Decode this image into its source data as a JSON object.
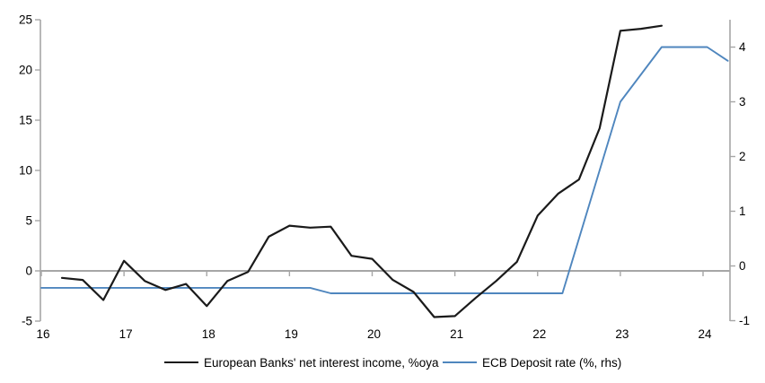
{
  "chart_data": {
    "type": "line",
    "x_axis": {
      "tick_labels": [
        "16",
        "17",
        "18",
        "19",
        "20",
        "21",
        "22",
        "23",
        "24"
      ],
      "ticks": [
        16,
        17,
        18,
        19,
        20,
        21,
        22,
        23,
        24
      ],
      "range": [
        16,
        24.33
      ],
      "grid": false
    },
    "left_axis": {
      "ticks": [
        25,
        20,
        15,
        10,
        5,
        0,
        -5
      ],
      "range": [
        -5,
        25
      ],
      "zero_line": true
    },
    "right_axis": {
      "ticks": [
        4,
        3,
        2,
        1,
        0,
        -1
      ],
      "range": [
        -1,
        4.6
      ]
    },
    "series": [
      {
        "name": "European Banks' net interest income, %oya",
        "axis": "left",
        "color": "#1a1a1a",
        "x": [
          16.25,
          16.5,
          16.75,
          17.0,
          17.25,
          17.5,
          17.75,
          18.0,
          18.25,
          18.5,
          18.75,
          19.0,
          19.25,
          19.5,
          19.75,
          20.0,
          20.25,
          20.5,
          20.75,
          21.0,
          21.25,
          21.5,
          21.75,
          22.0,
          22.25,
          22.5,
          22.75,
          23.0,
          23.25,
          23.5
        ],
        "values": [
          -0.7,
          -0.9,
          -2.9,
          1.0,
          -1.0,
          -1.9,
          -1.3,
          -3.5,
          -1.0,
          -0.1,
          3.4,
          4.5,
          4.3,
          4.4,
          1.5,
          1.2,
          -0.9,
          -2.1,
          -4.6,
          -4.5,
          -2.7,
          -1.0,
          0.9,
          5.5,
          7.7,
          9.1,
          14.2,
          23.9,
          24.1,
          24.4
        ]
      },
      {
        "name": "ECB Deposit rate (%, rhs)",
        "axis": "right",
        "color": "#4f86be",
        "x": [
          16.0,
          19.25,
          19.5,
          22.3,
          23.0,
          23.5,
          24.05,
          24.3
        ],
        "values": [
          -0.4,
          -0.4,
          -0.5,
          -0.5,
          3.0,
          4.0,
          4.0,
          3.75
        ]
      }
    ],
    "legend": {
      "position": "bottom-center",
      "items": [
        "European Banks' net interest income, %oya",
        "ECB Deposit rate (%, rhs)"
      ]
    }
  },
  "colors": {
    "series_nii": "#1a1a1a",
    "series_ecb": "#4f86be",
    "axis_gray": "#a6a6a6",
    "text": "#000000",
    "background": "#ffffff"
  }
}
